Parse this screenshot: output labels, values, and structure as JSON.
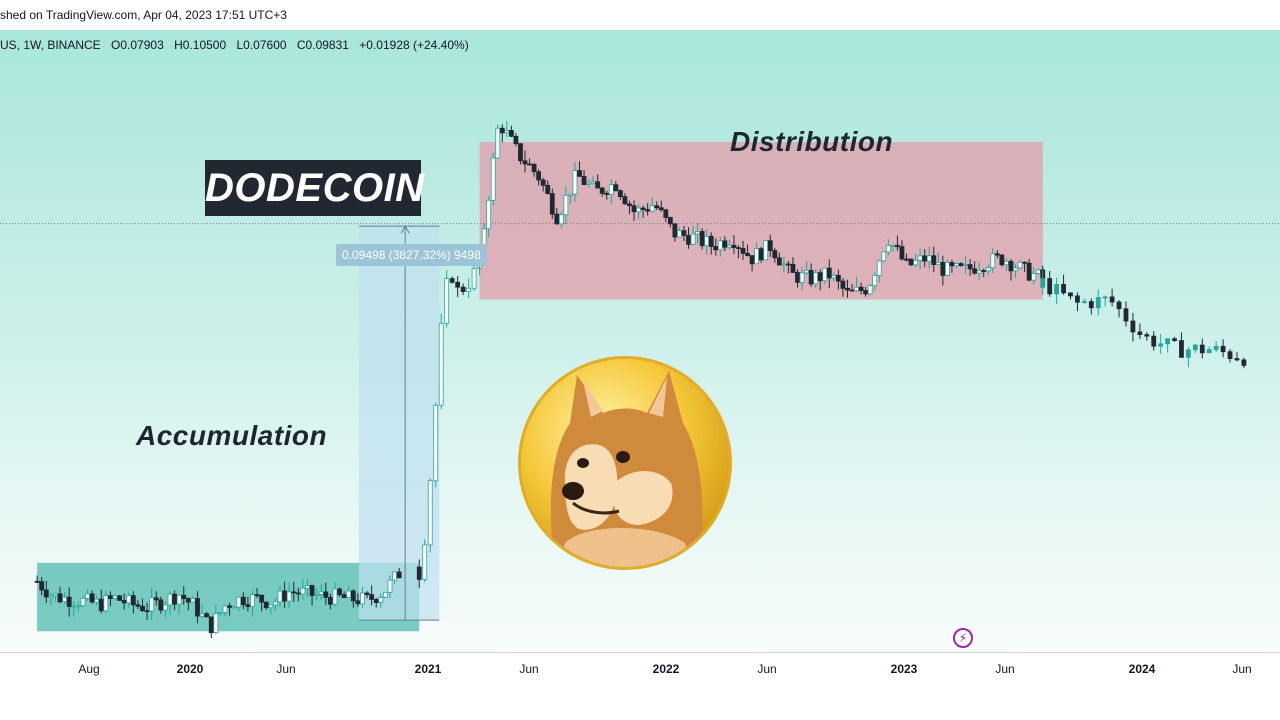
{
  "header": {
    "published_text": "shed on TradingView.com, Apr 04, 2023 17:51 UTC+3"
  },
  "legend": {
    "symbol_info": "US, 1W, BINANCE",
    "open": "O0.07903",
    "high": "H0.10500",
    "low": "L0.07600",
    "close": "C0.09831",
    "change": "+0.01928 (+24.40%)"
  },
  "annotations": {
    "brand": "DODECOIN",
    "accumulation_label": "Accumulation",
    "distribution_label": "Distribution",
    "measure_label": "0.09498 (3827.32%) 9498",
    "bolt_icon": "lightning-icon"
  },
  "colors": {
    "up": "#26a69a",
    "down": "#222831",
    "accumulation_zone": "#62c2b6",
    "distribution_zone": "#e69aa8",
    "measure_zone": "#bfe0ef"
  },
  "chart_data": {
    "type": "candlestick",
    "x_axis_ticks": [
      {
        "label": "Aug",
        "bold": false
      },
      {
        "label": "2020",
        "bold": true
      },
      {
        "label": "Jun",
        "bold": false
      },
      {
        "label": "2021",
        "bold": true
      },
      {
        "label": "Jun",
        "bold": false
      },
      {
        "label": "2022",
        "bold": true
      },
      {
        "label": "Jun",
        "bold": false
      },
      {
        "label": "2023",
        "bold": true
      },
      {
        "label": "Jun",
        "bold": false
      },
      {
        "label": "2024",
        "bold": true
      },
      {
        "label": "Jun",
        "bold": false
      }
    ],
    "y_range": [
      -0.005,
      0.145
    ],
    "price_line": 0.09831,
    "zones": {
      "accumulation": {
        "x_from": "2019-06",
        "x_to": "2021-01",
        "y_from": 0.0,
        "y_to": 0.0165
      },
      "distribution": {
        "x_from": "2021-04",
        "x_to": "2023-08",
        "y_from": 0.08,
        "y_to": 0.118
      },
      "measure": {
        "x_from": "2020-10",
        "x_to": "2021-02",
        "y_from": 0.0027,
        "y_to": 0.0977
      }
    },
    "segments": [
      {
        "from": "2019-06",
        "to": "2020-12",
        "weeks": 80,
        "anchors": [
          0.012,
          0.0085,
          0.0078,
          0.0072,
          0.0065,
          0.008,
          0.0065,
          0.0058,
          0.0072,
          0.009,
          0.006,
          0.001,
          0.0065,
          0.008,
          0.0078,
          0.007,
          0.0095,
          0.0092,
          0.0085,
          0.0082,
          0.0078,
          0.0075,
          0.0095,
          0.014
        ]
      },
      {
        "from": "2021-01",
        "to": "2021-04",
        "weeks": 12,
        "anchors": [
          0.014,
          0.026,
          0.05,
          0.075,
          0.088,
          0.082,
          0.083,
          0.085,
          0.09
        ]
      },
      {
        "from": "2021-04",
        "to": "2023-08",
        "weeks": 125,
        "anchors": [
          0.09,
          0.123,
          0.115,
          0.11,
          0.1,
          0.11,
          0.106,
          0.108,
          0.101,
          0.103,
          0.096,
          0.095,
          0.093,
          0.095,
          0.09,
          0.093,
          0.086,
          0.085,
          0.086,
          0.081,
          0.083,
          0.095,
          0.088,
          0.09,
          0.087,
          0.087,
          0.089,
          0.09,
          0.087,
          0.085
        ]
      },
      {
        "from": "2023-08",
        "to": "2024-06",
        "weeks": 30,
        "anchors": [
          0.084,
          0.079,
          0.08,
          0.071,
          0.068,
          0.068,
          0.066
        ]
      }
    ]
  }
}
